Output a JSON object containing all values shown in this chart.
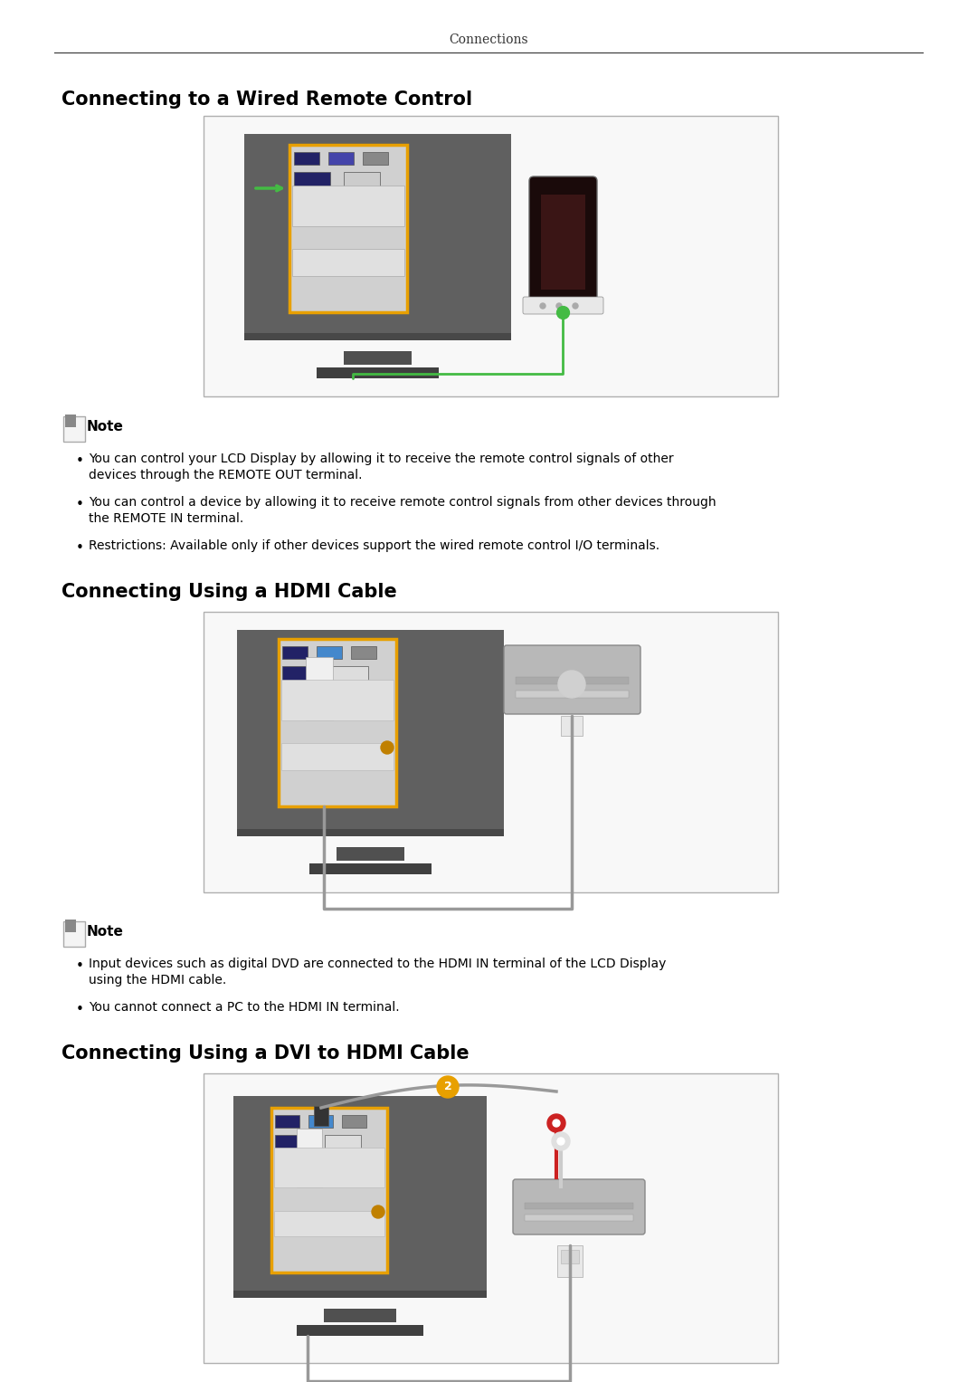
{
  "page_title": "Connections",
  "bg_color": "#ffffff",
  "text_color": "#000000",
  "section1_title": "Connecting to a Wired Remote Control",
  "section2_title": "Connecting Using a HDMI Cable",
  "section3_title": "Connecting Using a DVI to HDMI Cable",
  "note_label": "Note",
  "section1_bullets": [
    "You can control your LCD Display by allowing it to receive the remote control signals of other\ndevices through the REMOTE OUT terminal.",
    "You can control a device by allowing it to receive remote control signals from other devices through\nthe REMOTE IN terminal.",
    "Restrictions: Available only if other devices support the wired remote control I/O terminals."
  ],
  "section2_bullets": [
    "Input devices such as digital DVD are connected to the HDMI IN terminal of the LCD Display\nusing the HDMI cable.",
    "You cannot connect a PC to the HDMI IN terminal."
  ],
  "line_color": "#888888",
  "box_border_color": "#b0b0b0",
  "box_fill_color": "#ffffff",
  "monitor_fill": "#606060",
  "monitor_dark": "#484848",
  "orange_border": "#e8a000",
  "panel_bg": "#d8d8d8",
  "panel_inner": "#c0c0c0",
  "green_color": "#44bb44",
  "gray_cable": "#999999",
  "note_icon_color": "#888888"
}
